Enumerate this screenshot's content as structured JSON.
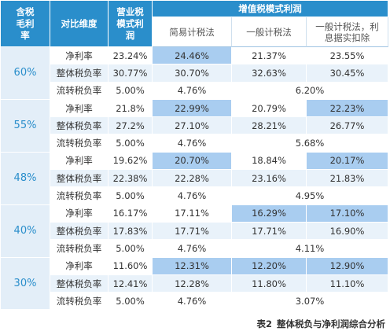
{
  "headers": {
    "rate": "含税毛利率",
    "dimension": "对比维度",
    "business_tax": "营业税模式利润",
    "vat_group": "增值税模式利润",
    "simple": "简易计税法",
    "general": "一般计税法",
    "general_deduct": "一般计税法，利息据实扣除"
  },
  "groups": [
    {
      "rate": "60%",
      "rows": [
        {
          "label": "净利率",
          "bt": "23.24%",
          "simple": "24.46%",
          "general": "21.37%",
          "deduct": "23.55%"
        },
        {
          "label": "整体税负率",
          "bt": "30.77%",
          "simple": "30.70%",
          "general": "32.63%",
          "deduct": "30.45%"
        },
        {
          "label": "流转税负率",
          "bt": "5.00%",
          "simple": "4.76%",
          "merged": "6.20%"
        }
      ]
    },
    {
      "rate": "55%",
      "rows": [
        {
          "label": "净利率",
          "bt": "21.8%",
          "simple": "22.99%",
          "general": "20.79%",
          "deduct": "22.23%"
        },
        {
          "label": "整体税负率",
          "bt": "27.2%",
          "simple": "27.10%",
          "general": "28.21%",
          "deduct": "26.77%"
        },
        {
          "label": "流转税负率",
          "bt": "5.00%",
          "simple": "4.76%",
          "merged": "5.68%"
        }
      ]
    },
    {
      "rate": "48%",
      "rows": [
        {
          "label": "净利率",
          "bt": "19.62%",
          "simple": "20.70%",
          "general": "18.84%",
          "deduct": "20.17%"
        },
        {
          "label": "整体税负率",
          "bt": "22.38%",
          "simple": "22.28%",
          "general": "23.16%",
          "deduct": "21.83%"
        },
        {
          "label": "流转税负率",
          "bt": "5.00%",
          "simple": "4.76%",
          "merged": "4.95%"
        }
      ]
    },
    {
      "rate": "40%",
      "rows": [
        {
          "label": "净利率",
          "bt": "16.17%",
          "simple": "17.11%",
          "general": "16.29%",
          "deduct": "17.10%"
        },
        {
          "label": "整体税负率",
          "bt": "17.83%",
          "simple": "17.71%",
          "general": "17.71%",
          "deduct": "16.90%"
        },
        {
          "label": "流转税负率",
          "bt": "5.00%",
          "simple": "4.76%",
          "merged": "4.11%"
        }
      ]
    },
    {
      "rate": "30%",
      "rows": [
        {
          "label": "净利率",
          "bt": "11.60%",
          "simple": "12.31%",
          "general": "12.20%",
          "deduct": "12.90%"
        },
        {
          "label": "整体税负率",
          "bt": "12.41%",
          "simple": "12.28%",
          "general": "11.80%",
          "deduct": "11.10%"
        },
        {
          "label": "流转税负率",
          "bt": "5.00%",
          "simple": "4.76%",
          "merged": "3.07%"
        }
      ]
    }
  ],
  "caption": {
    "number": "表2",
    "title": "整体税负与净利润综合分析"
  },
  "colors": {
    "header": "#2a8ecb",
    "highlight": "#a9cdf0",
    "band": "#e9f2fa",
    "group_cell": "#e3eef8"
  }
}
